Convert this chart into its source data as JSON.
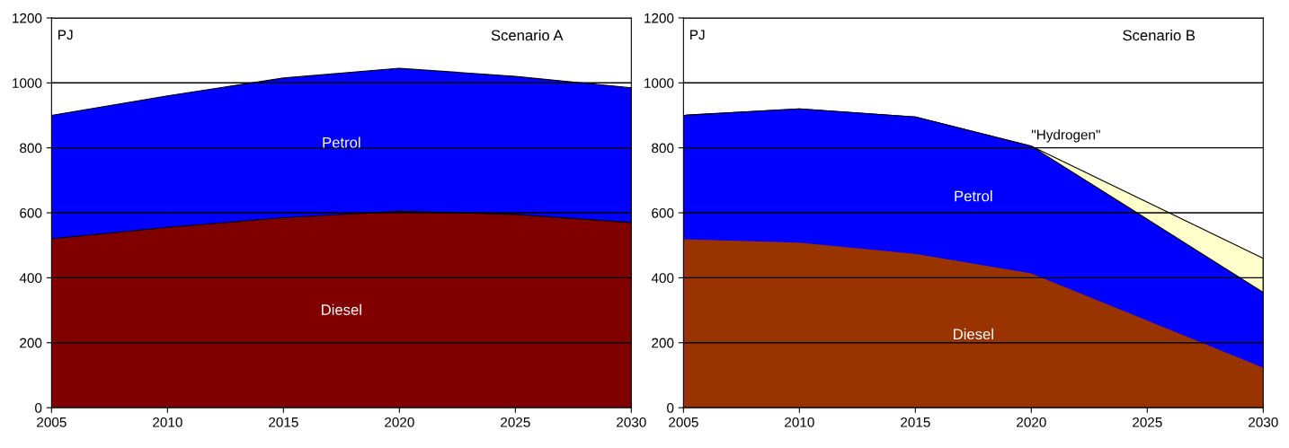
{
  "chart_data": [
    {
      "type": "area",
      "stacked": true,
      "title": "Scenario A",
      "ylabel": "PJ",
      "x": [
        2005,
        2010,
        2015,
        2020,
        2025,
        2030
      ],
      "series": [
        {
          "name": "Diesel",
          "color": "#800000",
          "values": [
            520,
            555,
            585,
            605,
            595,
            570
          ]
        },
        {
          "name": "Petrol",
          "color": "#0000ff",
          "values": [
            380,
            405,
            430,
            440,
            425,
            415
          ]
        }
      ],
      "xlim": [
        2005,
        2030
      ],
      "xticks": [
        2005,
        2010,
        2015,
        2020,
        2025,
        2030
      ],
      "ylim": [
        0,
        1200
      ],
      "yticks": [
        0,
        200,
        400,
        600,
        800,
        1000,
        1200
      ],
      "grid": "y",
      "legend": false
    },
    {
      "type": "area",
      "stacked": true,
      "title": "Scenario B",
      "ylabel": "PJ",
      "x": [
        2005,
        2010,
        2015,
        2020,
        2030
      ],
      "series": [
        {
          "name": "Diesel",
          "color": "#993300",
          "values": [
            520,
            510,
            475,
            415,
            125
          ]
        },
        {
          "name": "Petrol",
          "color": "#0000ff",
          "values": [
            380,
            410,
            420,
            390,
            230
          ]
        },
        {
          "name": "\"Hydrogen\"",
          "color": "#ffffcc",
          "values": [
            0,
            0,
            0,
            0,
            105
          ]
        }
      ],
      "xlim": [
        2005,
        2030
      ],
      "xticks": [
        2005,
        2010,
        2015,
        2020,
        2025,
        2030
      ],
      "ylim": [
        0,
        1200
      ],
      "yticks": [
        0,
        200,
        400,
        600,
        800,
        1000,
        1200
      ],
      "grid": "y",
      "legend": false
    }
  ]
}
